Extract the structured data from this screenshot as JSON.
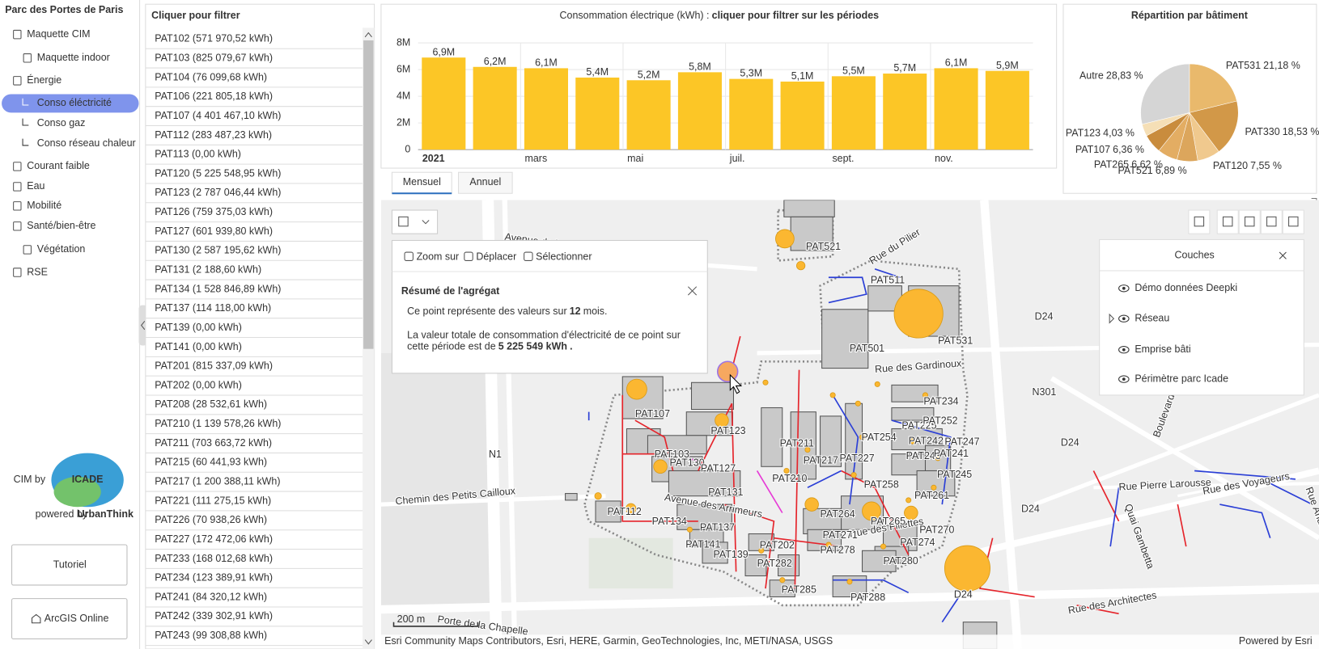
{
  "sidebar": {
    "title": "Parc des Portes de Paris",
    "menu": [
      "Maquette CIM",
      "Maquette indoor",
      "Énergie",
      "Conso éléctricité",
      "Conso gaz",
      "Conso réseau chaleur",
      "Courant faible",
      "Eau",
      "Mobilité",
      "Santé/bien-être",
      "Végétation",
      "RSE"
    ],
    "brand": {
      "prefix": "CIM by",
      "logo": "ICADE",
      "powered": "powered by",
      "partner": "UrbanThink"
    },
    "buttons": [
      "Tutoriel",
      "ArcGIS Online"
    ]
  },
  "filter_list": {
    "title": "Cliquer pour filtrer",
    "items": [
      "PAT102 (571 970,52 kWh)",
      "PAT103 (825 079,67 kWh)",
      "PAT104 (76 099,68 kWh)",
      "PAT106 (221 805,18 kWh)",
      "PAT107 (4 401 467,10 kWh)",
      "PAT112 (283 487,23 kWh)",
      "PAT113 (0,00 kWh)",
      "PAT120 (5 225 548,95 kWh)",
      "PAT123 (2 787 046,44 kWh)",
      "PAT126 (759 375,03 kWh)",
      "PAT127 (601 939,80 kWh)",
      "PAT130 (2 587 195,62 kWh)",
      "PAT131 (2 188,60 kWh)",
      "PAT134 (1 528 846,89 kWh)",
      "PAT137 (114 118,00 kWh)",
      "PAT139 (0,00 kWh)",
      "PAT141 (0,00 kWh)",
      "PAT201 (815 337,09 kWh)",
      "PAT202 (0,00 kWh)",
      "PAT208 (28 532,61 kWh)",
      "PAT210 (1 139 578,26 kWh)",
      "PAT211 (703 663,72 kWh)",
      "PAT215 (60 441,93 kWh)",
      "PAT217 (1 200 388,11 kWh)",
      "PAT221 (111 275,15 kWh)",
      "PAT226 (70 938,26 kWh)",
      "PAT227 (172 472,06 kWh)",
      "PAT233 (168 012,68 kWh)",
      "PAT234 (123 389,91 kWh)",
      "PAT241 (84 320,12 kWh)",
      "PAT242 (339 302,91 kWh)",
      "PAT243 (99 308,88 kWh)"
    ]
  },
  "chart_data": [
    {
      "type": "bar",
      "title": "Consommation électrique (kWh) :",
      "title_emphasis": "cliquer pour filtrer sur les périodes",
      "categories": [
        "2021",
        null,
        "mars",
        null,
        "mai",
        null,
        "juil.",
        null,
        "sept.",
        null,
        "nov.",
        null
      ],
      "values": [
        6900000,
        6200000,
        6100000,
        5400000,
        5200000,
        5800000,
        5300000,
        5100000,
        5500000,
        5700000,
        6100000,
        5900000
      ],
      "value_labels": [
        "6,9M",
        "6,2M",
        "6,1M",
        "5,4M",
        "5,2M",
        "5,8M",
        "5,3M",
        "5,1M",
        "5,5M",
        "5,7M",
        "6,1M",
        "5,9M"
      ],
      "color": "#fcc626",
      "ylim": [
        0,
        8000000
      ],
      "yticks": [
        0,
        {
          "value": 2000000,
          "label": "2M"
        },
        {
          "value": 4000000,
          "label": "4M"
        },
        {
          "value": 6000000,
          "label": "6M"
        },
        {
          "value": 8000000,
          "label": "8M"
        }
      ],
      "grid": true
    },
    {
      "type": "pie",
      "title": "Répartition par bâtiment",
      "categories": [
        "PAT531",
        "PAT330",
        "PAT120",
        "PAT521",
        "PAT265",
        "PAT107",
        "PAT123",
        "Autre"
      ],
      "values": [
        21.18,
        18.53,
        7.55,
        6.89,
        6.62,
        6.36,
        4.03,
        28.83
      ],
      "value_labels": [
        "21,18 %",
        "18,53 %",
        "7,55 %",
        "6,89 %",
        "6,62 %",
        "6,36 %",
        "4,03 %",
        "28,83 %"
      ],
      "colors": [
        "#e9b96c",
        "#d29848",
        "#f0c98e",
        "#dca65c",
        "#e3ad63",
        "#c98c3d",
        "#f5dfb6",
        "#d5d5d5"
      ]
    }
  ],
  "tabs": [
    "Mensuel",
    "Annuel"
  ],
  "map": {
    "labels": [
      "Chemin des Petits Cailloux",
      "Avenue de la Métallurgie",
      "Rue du Pilier",
      "Rue des Gardinoux",
      "Avenue des Arrimeurs",
      "Rue des Fillettes",
      "Porte de la Chapelle",
      "Rue Pierre Larousse",
      "Rue des Voyageurs",
      "Boulevard Félix Faure",
      "Quai Gambetta",
      "Rue André Karman",
      "Rue des Architectes",
      "N1",
      "N301",
      "D24",
      "D24",
      "D24",
      "D24",
      "PAT521",
      "PAT511",
      "PAT501",
      "PAT531",
      "PAT107",
      "PAT123",
      "PAT103",
      "PAT130",
      "PAT127",
      "PAT131",
      "PAT112",
      "PAT134",
      "PAT137",
      "PAT141",
      "PAT139",
      "PAT202",
      "PAT282",
      "PAT285",
      "PAT288",
      "PAT210",
      "PAT211",
      "PAT217",
      "PAT227",
      "PAT254",
      "PAT225",
      "PAT242",
      "PAT243",
      "PAT241",
      "PAT247",
      "PAT252",
      "PAT234",
      "PAT258",
      "PAT261",
      "PAT245",
      "PAT264",
      "PAT265",
      "PAT270",
      "PAT271",
      "PAT274",
      "PAT278",
      "PAT280"
    ],
    "scale": "200 m",
    "attribution": "Esri Community Maps Contributors, Esri, HERE, Garmin, GeoTechnologies, Inc, METI/NASA, USGS",
    "powered": "Powered by Esri",
    "popup": {
      "tools": [
        "Zoom sur",
        "Déplacer",
        "Sélectionner"
      ],
      "title": "Résumé de l'agrégat",
      "line1": "Ce point représente des valeurs sur",
      "months": "12",
      "line1_end": "mois.",
      "line2": "La valeur totale de consommation d'électricité de ce point sur",
      "line3": "cette période est de",
      "total": "5 225 549 kWh",
      "line3_end": "."
    },
    "layers": {
      "title": "Couches",
      "items": [
        "Démo données Deepki",
        "Réseau",
        "Emprise bâti",
        "Périmètre parc Icade"
      ]
    }
  }
}
